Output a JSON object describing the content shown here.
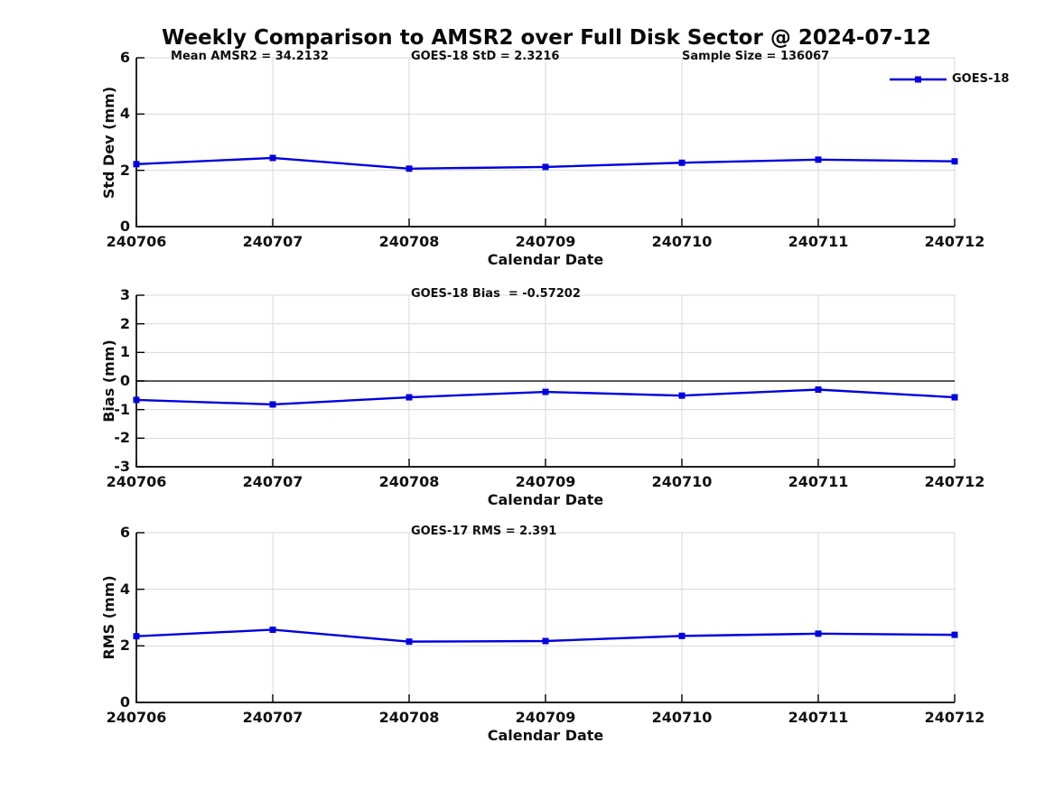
{
  "figure": {
    "title": "Weekly Comparison to AMSR2 over Full Disk Sector @ 2024-07-12",
    "background": "#ffffff"
  },
  "colors": {
    "series": "#0000e0",
    "grid": "#d9d9d9",
    "spine": "#000000",
    "tick": "#000000",
    "zero_line": "#404040",
    "text": "#111111"
  },
  "legend": {
    "label": "GOES-18",
    "position": "upper-right",
    "marker": "square",
    "line_color": "#0000e0"
  },
  "chart_data": [
    {
      "type": "line",
      "xlabel": "Calendar Date",
      "ylabel": "Std Dev (mm)",
      "categories": [
        "240706",
        "240707",
        "240708",
        "240709",
        "240710",
        "240711",
        "240712"
      ],
      "series": [
        {
          "name": "GOES-18",
          "values": [
            2.22,
            2.44,
            2.06,
            2.12,
            2.27,
            2.38,
            2.32
          ]
        }
      ],
      "ylim": [
        0,
        6
      ],
      "yticks": [
        0,
        2,
        4,
        6
      ],
      "grid": true,
      "zero_line": false,
      "show_legend": true,
      "annotations": [
        {
          "text": "Mean AMSR2 = 34.2132",
          "xfrac": 0.042
        },
        {
          "text": "GOES-18 StD = 2.3216",
          "xfrac": 0.3355
        },
        {
          "text": "Sample Size = 136067",
          "xfrac": 0.6667
        }
      ]
    },
    {
      "type": "line",
      "xlabel": "Calendar Date",
      "ylabel": "Bias (mm)",
      "categories": [
        "240706",
        "240707",
        "240708",
        "240709",
        "240710",
        "240711",
        "240712"
      ],
      "series": [
        {
          "name": "GOES-18",
          "values": [
            -0.66,
            -0.82,
            -0.57,
            -0.38,
            -0.51,
            -0.3,
            -0.57
          ]
        }
      ],
      "ylim": [
        -3,
        3
      ],
      "yticks": [
        -3,
        -2,
        -1,
        0,
        1,
        2,
        3
      ],
      "grid": true,
      "zero_line": true,
      "show_legend": false,
      "annotations": [
        {
          "text": "GOES-18 Bias  = -0.57202",
          "xfrac": 0.3355
        }
      ]
    },
    {
      "type": "line",
      "xlabel": "Calendar Date",
      "ylabel": "RMS (mm)",
      "categories": [
        "240706",
        "240707",
        "240708",
        "240709",
        "240710",
        "240711",
        "240712"
      ],
      "series": [
        {
          "name": "GOES-18",
          "values": [
            2.34,
            2.57,
            2.15,
            2.17,
            2.35,
            2.43,
            2.39
          ]
        }
      ],
      "ylim": [
        0,
        6
      ],
      "yticks": [
        0,
        2,
        4,
        6
      ],
      "grid": true,
      "zero_line": false,
      "show_legend": false,
      "annotations": [
        {
          "text": "GOES-17 RMS = 2.391",
          "xfrac": 0.3355
        }
      ]
    }
  ]
}
